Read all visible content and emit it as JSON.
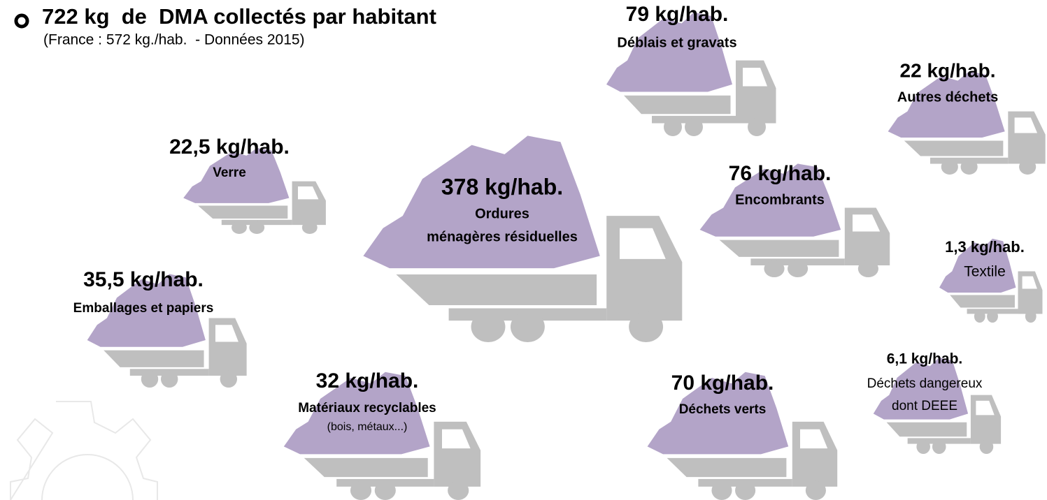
{
  "header": {
    "title": "722 kg  de  DMA collectés par habitant",
    "subtitle": "(France : 572 kg./hab.  - Données 2015)"
  },
  "items": [
    {
      "value": "79 kg/hab.",
      "lines": [
        "Déblais et gravats"
      ]
    },
    {
      "value": "22 kg/hab.",
      "lines": [
        "Autres déchets"
      ]
    },
    {
      "value": "22,5 kg/hab.",
      "lines": [
        "Verre"
      ]
    },
    {
      "value": "378 kg/hab.",
      "lines": [
        "Ordures",
        "ménagères résiduelles"
      ]
    },
    {
      "value": "76 kg/hab.",
      "lines": [
        "Encombrants"
      ]
    },
    {
      "value": "1,3 kg/hab.",
      "lines": [
        "Textile"
      ]
    },
    {
      "value": "35,5 kg/hab.",
      "lines": [
        "Emballages et papiers"
      ]
    },
    {
      "value": "32 kg/hab.",
      "lines": [
        "Matériaux recyclables",
        "(bois, métaux...)"
      ]
    },
    {
      "value": "70 kg/hab.",
      "lines": [
        "Déchets verts"
      ]
    },
    {
      "value": "6,1 kg/hab.",
      "lines": [
        "Déchets dangereux",
        "dont DEEE"
      ]
    }
  ]
}
